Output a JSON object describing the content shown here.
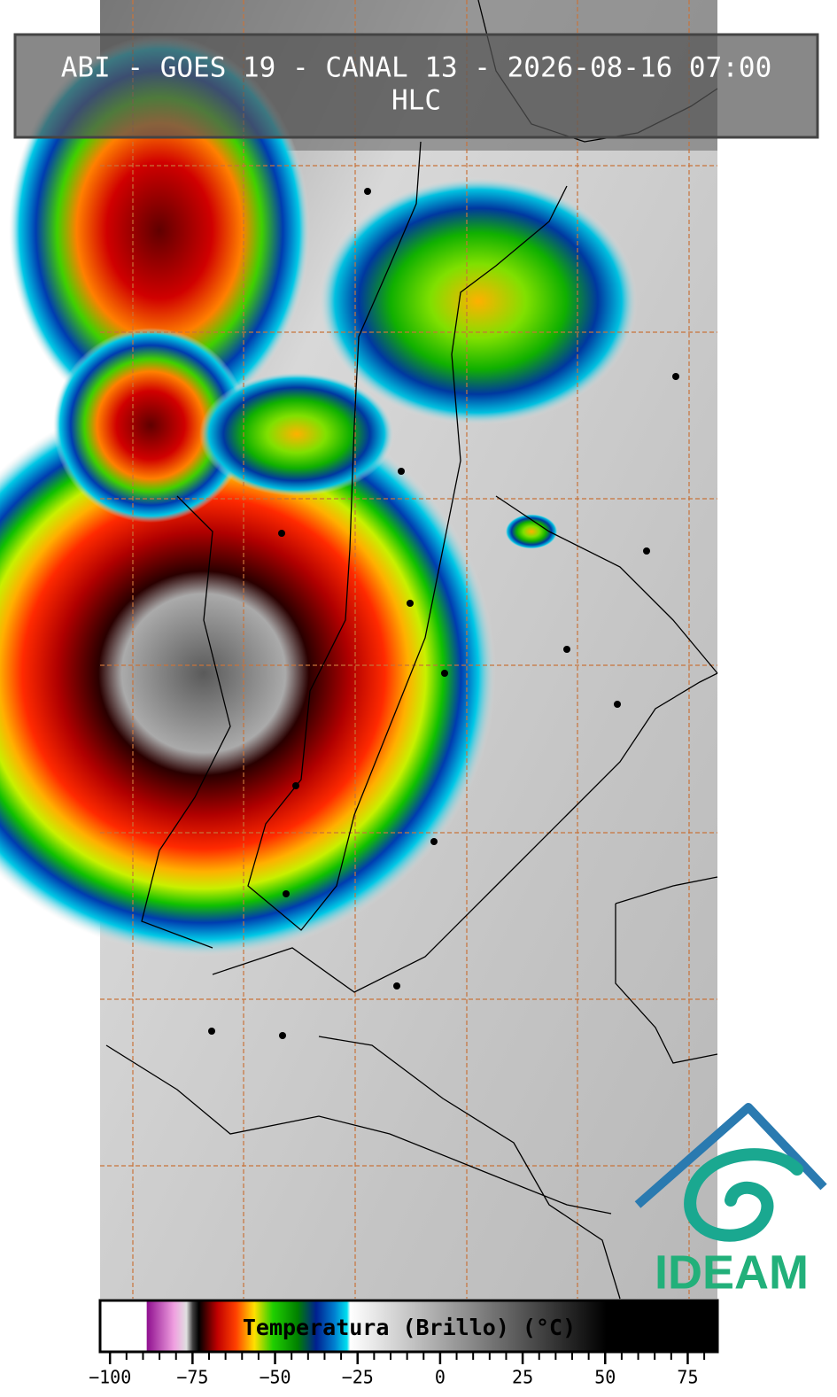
{
  "header": {
    "title": "ABI - GOES 19 - CANAL 13 - 2026-08-16 07:00",
    "subtitle": "HLC"
  },
  "colorbar": {
    "label": "Temperatura (Brillo) (°C)",
    "lim": [
      -103,
      84
    ],
    "ticks": [
      {
        "value": -100,
        "label": "−100"
      },
      {
        "value": -75,
        "label": "−75"
      },
      {
        "value": -50,
        "label": "−50"
      },
      {
        "value": -25,
        "label": "−25"
      },
      0,
      25,
      50,
      75
    ]
  },
  "logo": {
    "text": "IDEAM"
  }
}
